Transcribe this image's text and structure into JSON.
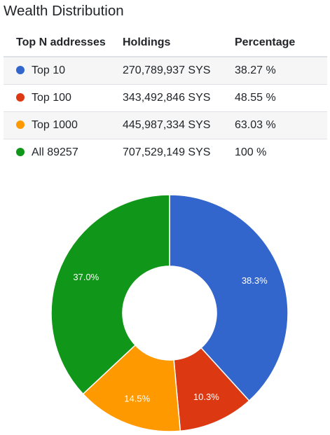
{
  "title": "Wealth Distribution",
  "table": {
    "headers": [
      "Top N addresses",
      "Holdings",
      "Percentage"
    ],
    "rows": [
      {
        "label": "Top 10",
        "holdings": "270,789,937 SYS",
        "percentage": "38.27 %",
        "color": "#3366cc"
      },
      {
        "label": "Top 100",
        "holdings": "343,492,846 SYS",
        "percentage": "48.55 %",
        "color": "#dc3912"
      },
      {
        "label": "Top 1000",
        "holdings": "445,987,334 SYS",
        "percentage": "63.03 %",
        "color": "#ff9900"
      },
      {
        "label": "All 89257",
        "holdings": "707,529,149 SYS",
        "percentage": "100 %",
        "color": "#109618"
      }
    ]
  },
  "chart_data": {
    "type": "pie",
    "values": [
      38.3,
      10.3,
      14.5,
      37.0
    ],
    "labels": [
      "38.3%",
      "10.3%",
      "14.5%",
      "37.0%"
    ],
    "colors": [
      "#3366cc",
      "#dc3912",
      "#ff9900",
      "#109618"
    ]
  }
}
